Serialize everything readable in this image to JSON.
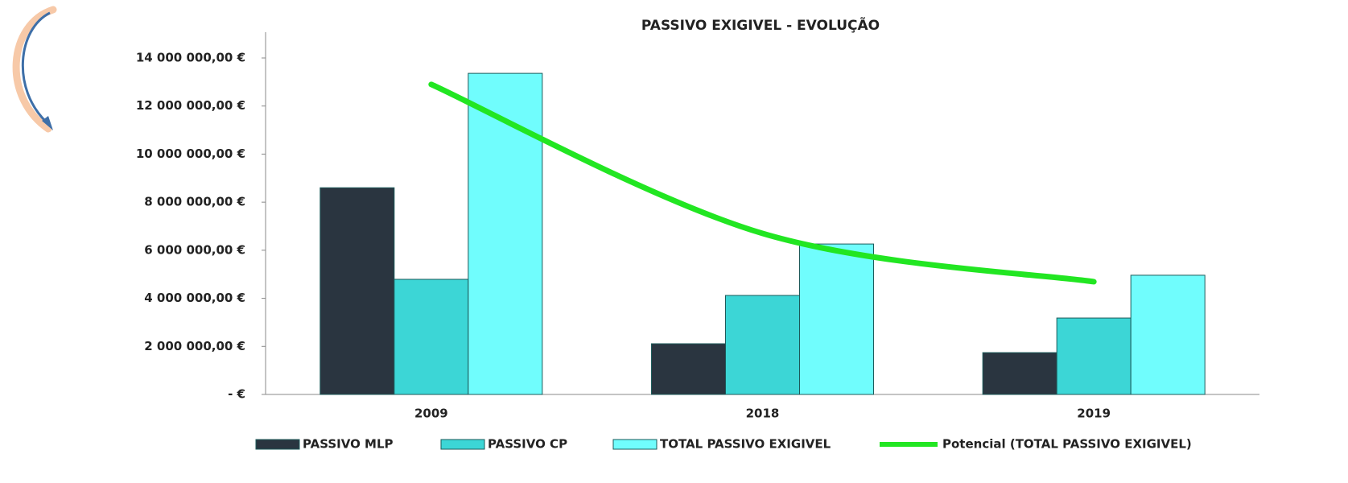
{
  "chart_data": {
    "type": "bar",
    "title": "PASSIVO EXIGIVEL - EVOLUÇÃO",
    "categories": [
      "2009",
      "2018",
      "2019"
    ],
    "series": [
      {
        "name": "PASSIVO MLP",
        "color": "#2a3540",
        "values": [
          8600000,
          2110000,
          1740000
        ]
      },
      {
        "name": "PASSIVO CP",
        "color": "#3cd6d6",
        "values": [
          4790000,
          4120000,
          3180000
        ]
      },
      {
        "name": "TOTAL PASSIVO EXIGIVEL",
        "color": "#70fdfd",
        "values": [
          13360000,
          6260000,
          4960000
        ]
      },
      {
        "name": "Potencial (TOTAL PASSIVO EXIGIVEL)",
        "color": "#22e622",
        "type": "line",
        "values": [
          12900000,
          6700000,
          4690000
        ]
      }
    ],
    "ylim": [
      0,
      14000000
    ],
    "yticks": [
      {
        "value": 0,
        "label": "-  €"
      },
      {
        "value": 2000000,
        "label": "2 000 000,00 €"
      },
      {
        "value": 4000000,
        "label": "4 000 000,00 €"
      },
      {
        "value": 6000000,
        "label": "6 000 000,00 €"
      },
      {
        "value": 8000000,
        "label": "8 000 000,00 €"
      },
      {
        "value": 10000000,
        "label": "10 000 000,00 €"
      },
      {
        "value": 12000000,
        "label": "12 000 000,00 €"
      },
      {
        "value": 14000000,
        "label": "14 000 000,00 €"
      }
    ],
    "grid": false,
    "legend": "bottom"
  }
}
